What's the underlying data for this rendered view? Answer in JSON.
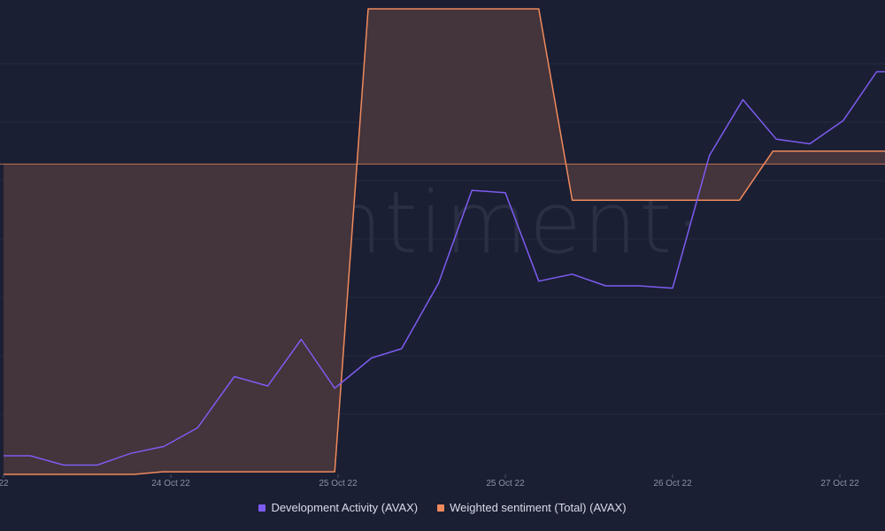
{
  "chart_data": {
    "type": "line",
    "watermark": "·santiment·",
    "x_tick_labels": [
      "22",
      "24 Oct 22",
      "25 Oct 22",
      "25 Oct 22",
      "26 Oct 22",
      "27 Oct 22"
    ],
    "x_tick_positions": [
      0,
      1,
      2,
      3,
      4,
      5
    ],
    "x_range": [
      0.0,
      5.35
    ],
    "series": [
      {
        "name": "Development Activity (AVAX)",
        "color": "#7c5cf0",
        "style": "line",
        "y_range": [
          0,
          100
        ],
        "x": [
          0,
          0.16,
          0.36,
          0.56,
          0.76,
          0.96,
          1.16,
          1.38,
          1.58,
          1.78,
          1.98,
          2.2,
          2.38,
          2.6,
          2.8,
          3.0,
          3.2,
          3.4,
          3.6,
          3.8,
          4.0,
          4.22,
          4.42,
          4.62,
          4.82,
          5.02,
          5.22,
          5.35
        ],
        "values": [
          4,
          4,
          2,
          2,
          4.5,
          6,
          10,
          21,
          19,
          29,
          18.5,
          25,
          27,
          41,
          61,
          60.5,
          41.5,
          43,
          40.5,
          40.5,
          40,
          68.5,
          80.5,
          72,
          71,
          76,
          86.5,
          86.5
        ]
      },
      {
        "name": "Weighted sentiment (Total) (AVAX)",
        "color": "#f08a5d",
        "style": "area",
        "fill": "#44343b",
        "baseline": 0,
        "y_range": [
          -0.6,
          0.3
        ],
        "x": [
          0,
          0.78,
          0.95,
          1.98,
          2.18,
          3.2,
          3.4,
          4.4,
          4.6,
          5.35
        ],
        "values": [
          -0.6,
          -0.6,
          -0.595,
          -0.595,
          0.3,
          0.3,
          -0.07,
          -0.07,
          0.025,
          0.025
        ]
      }
    ]
  }
}
